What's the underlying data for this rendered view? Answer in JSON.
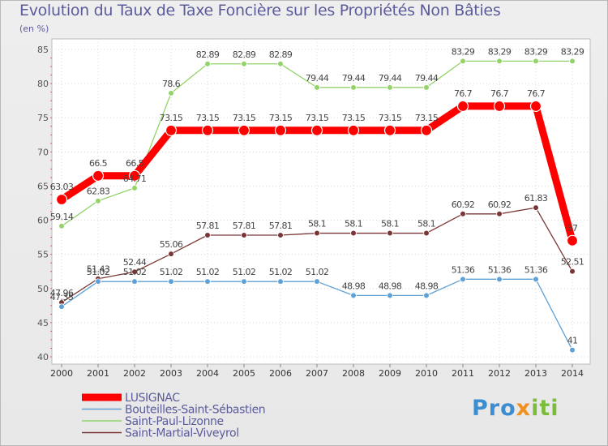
{
  "chart_data": {
    "type": "line",
    "title": "Evolution du Taux de Taxe Foncière sur les Propriétés Non Bâties",
    "ylabel": "(en %)",
    "xlabel": "",
    "ylim": [
      40,
      85
    ],
    "yticks": [
      40,
      45,
      50,
      55,
      60,
      65,
      70,
      75,
      80,
      85
    ],
    "x": [
      "2000",
      "2001",
      "2002",
      "2003",
      "2004",
      "2005",
      "2006",
      "2007",
      "2008",
      "2009",
      "2010",
      "2011",
      "2012",
      "2013",
      "2014"
    ],
    "grid": true,
    "legend": "bottom-left",
    "series": [
      {
        "name": "LUSIGNAC",
        "color": "#ff0000",
        "values": [
          63.03,
          66.5,
          66.5,
          73.15,
          73.15,
          73.15,
          73.15,
          73.15,
          73.15,
          73.15,
          73.15,
          76.7,
          76.7,
          76.7,
          57
        ],
        "labels": [
          "63.03",
          "66.5",
          "66.5",
          "73.15",
          "73.15",
          "73.15",
          "73.15",
          "73.15",
          "73.15",
          "73.15",
          "73.15",
          "76.7",
          "76.7",
          "76.7",
          "57"
        ]
      },
      {
        "name": "Bouteilles-Saint-Sébastien",
        "color": "#5fa1d6",
        "values": [
          47.35,
          51.02,
          51.02,
          51.02,
          51.02,
          51.02,
          51.02,
          51.02,
          48.98,
          48.98,
          48.98,
          51.36,
          51.36,
          51.36,
          41
        ],
        "labels": [
          "47.35",
          "51.02",
          "51.02",
          "51.02",
          "51.02",
          "51.02",
          "51.02",
          "51.02",
          "48.98",
          "48.98",
          "48.98",
          "51.36",
          "51.36",
          "51.36",
          "41"
        ]
      },
      {
        "name": "Saint-Paul-Lizonne",
        "color": "#93d36a",
        "values": [
          59.14,
          62.83,
          64.71,
          78.6,
          82.89,
          82.89,
          82.89,
          79.44,
          79.44,
          79.44,
          79.44,
          83.29,
          83.29,
          83.29,
          83.29
        ],
        "labels": [
          "59.14",
          "62.83",
          "64.71",
          "78.6",
          "82.89",
          "82.89",
          "82.89",
          "79.44",
          "79.44",
          "79.44",
          "79.44",
          "83.29",
          "83.29",
          "83.29",
          "83.29"
        ]
      },
      {
        "name": "Saint-Martial-Viveyrol",
        "color": "#7a3636",
        "values": [
          47.96,
          51.43,
          52.44,
          55.06,
          57.81,
          57.81,
          57.81,
          58.1,
          58.1,
          58.1,
          58.1,
          60.92,
          60.92,
          61.83,
          52.51
        ],
        "labels": [
          "47.96",
          "51.43",
          "52.44",
          "55.06",
          "57.81",
          "57.81",
          "57.81",
          "58.1",
          "58.1",
          "58.1",
          "58.1",
          "60.92",
          "60.92",
          "61.83",
          "52.51"
        ]
      }
    ]
  },
  "logo": {
    "part1": "Pro",
    "part2": "x",
    "part3": "iti"
  }
}
